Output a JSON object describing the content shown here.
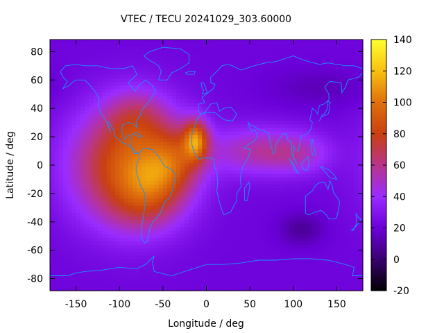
{
  "chart_data": {
    "type": "heatmap",
    "title": "VTEC / TECU 20241029_303.60000",
    "xlabel": "Longitude / deg",
    "ylabel": "Latitude / deg",
    "xlim": [
      -180,
      180
    ],
    "ylim": [
      -88.5,
      88.5
    ],
    "xticks": [
      -150,
      -100,
      -50,
      0,
      50,
      100,
      150
    ],
    "yticks": [
      -80,
      -60,
      -40,
      -20,
      0,
      20,
      40,
      60,
      80
    ],
    "colorbar": {
      "min": -20,
      "max": 140,
      "ticks": [
        -20,
        0,
        20,
        40,
        60,
        80,
        100,
        120,
        140
      ],
      "colors": [
        "#000000",
        "#3a0070",
        "#6a00d8",
        "#9a2cff",
        "#b8358a",
        "#c84010",
        "#e0700c",
        "#f8c010",
        "#ffff30"
      ]
    },
    "background_value": 22,
    "features": [
      {
        "name": "Pacific-Americas equatorial anomaly",
        "lon": -90,
        "lat": 0,
        "peak": 68,
        "sigma_lon": 45,
        "sigma_lat": 28
      },
      {
        "name": "South Atlantic crest",
        "lon": -60,
        "lat": -10,
        "peak": 22,
        "sigma_lon": 25,
        "sigma_lat": 14
      },
      {
        "name": "Northern crest over Africa",
        "lon": -12,
        "lat": 18,
        "peak": 62,
        "sigma_lon": 10,
        "sigma_lat": 10
      },
      {
        "name": "Central Atlantic",
        "lon": -35,
        "lat": 5,
        "peak": 32,
        "sigma_lon": 22,
        "sigma_lat": 16
      },
      {
        "name": "North America",
        "lon": -80,
        "lat": 35,
        "peak": 22,
        "sigma_lon": 25,
        "sigma_lat": 14
      },
      {
        "name": "South America",
        "lon": -70,
        "lat": -30,
        "peak": 18,
        "sigma_lon": 30,
        "sigma_lat": 14
      },
      {
        "name": "Indian Ocean band",
        "lon": 60,
        "lat": 10,
        "peak": 32,
        "sigma_lon": 40,
        "sigma_lat": 12
      },
      {
        "name": "Western Pacific band",
        "lon": 110,
        "lat": 8,
        "peak": 18,
        "sigma_lon": 25,
        "sigma_lat": 10
      },
      {
        "name": "Southern Indian Ocean depletion",
        "lon": 110,
        "lat": -45,
        "peak": -14,
        "sigma_lon": 18,
        "sigma_lat": 8
      },
      {
        "name": "North Pacific depletion",
        "lon": 130,
        "lat": 55,
        "peak": -8,
        "sigma_lon": 40,
        "sigma_lat": 10
      }
    ]
  }
}
